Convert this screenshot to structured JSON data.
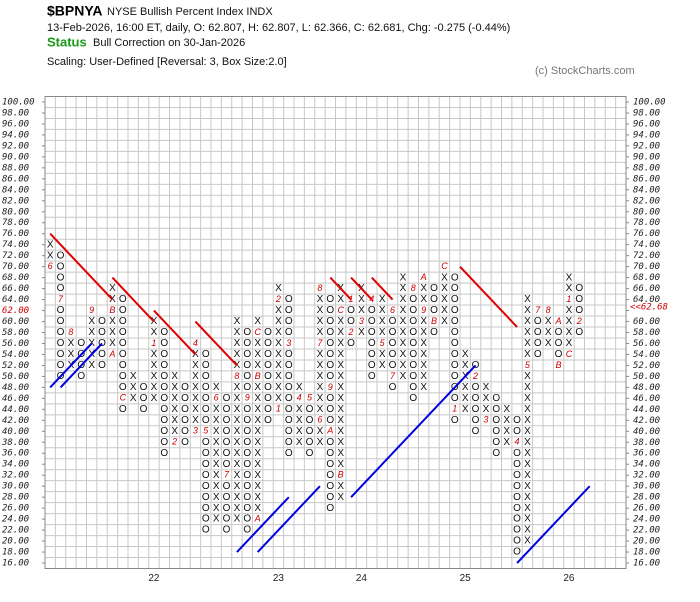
{
  "header": {
    "symbol": "$BPNYA",
    "name": "NYSE Bullish Percent Index  INDX",
    "quote": "13-Feb-2026, 16:00 ET, daily, O: 62.807, H: 62.807, L: 62.366, C: 62.681, Chg: -0.275 (-0.44%)",
    "status_label": "Status",
    "status": "Bull Correction on 30-Jan-2026",
    "scaling": "Scaling: User-Defined [Reversal: 3, Box Size:2.0]",
    "copyright": "(c) StockCharts.com"
  },
  "chart_data": {
    "type": "point_and_figure",
    "box_size": 2,
    "ylim": [
      15,
      101
    ],
    "xlim": [
      -0.5,
      55.5
    ],
    "grid": true,
    "yticks": [
      {
        "value": 16,
        "label": "16.00"
      },
      {
        "value": 18,
        "label": "18.00"
      },
      {
        "value": 20,
        "label": "20.00"
      },
      {
        "value": 22,
        "label": "22.00"
      },
      {
        "value": 24,
        "label": "24.00"
      },
      {
        "value": 26,
        "label": "26.00"
      },
      {
        "value": 28,
        "label": "28.00"
      },
      {
        "value": 30,
        "label": "30.00"
      },
      {
        "value": 32,
        "label": "32.00"
      },
      {
        "value": 34,
        "label": "34.00"
      },
      {
        "value": 36,
        "label": "36.00"
      },
      {
        "value": 38,
        "label": "38.00"
      },
      {
        "value": 40,
        "label": "40.00"
      },
      {
        "value": 42,
        "label": "42.00"
      },
      {
        "value": 44,
        "label": "44.00"
      },
      {
        "value": 46,
        "label": "46.00"
      },
      {
        "value": 48,
        "label": "48.00"
      },
      {
        "value": 50,
        "label": "50.00"
      },
      {
        "value": 52,
        "label": "52.00"
      },
      {
        "value": 54,
        "label": "54.00"
      },
      {
        "value": 56,
        "label": "56.00"
      },
      {
        "value": 58,
        "label": "58.00"
      },
      {
        "value": 60,
        "label": "60.00"
      },
      {
        "value": 62,
        "label": "62.00"
      },
      {
        "value": 64,
        "label": "64.00"
      },
      {
        "value": 66,
        "label": "66.00"
      },
      {
        "value": 68,
        "label": "68.00"
      },
      {
        "value": 70,
        "label": "70.00"
      },
      {
        "value": 72,
        "label": "72.00"
      },
      {
        "value": 74,
        "label": "74.00"
      },
      {
        "value": 76,
        "label": "76.00"
      },
      {
        "value": 78,
        "label": "78.00"
      },
      {
        "value": 80,
        "label": "80.00"
      },
      {
        "value": 82,
        "label": "82.00"
      },
      {
        "value": 84,
        "label": "84.00"
      },
      {
        "value": 86,
        "label": "86.00"
      },
      {
        "value": 88,
        "label": "88.00"
      },
      {
        "value": 90,
        "label": "90.00"
      },
      {
        "value": 92,
        "label": "92.00"
      },
      {
        "value": 94,
        "label": "94.00"
      },
      {
        "value": 96,
        "label": "96.00"
      },
      {
        "value": 98,
        "label": "98.00"
      },
      {
        "value": 100,
        "label": "100.00"
      }
    ],
    "current_box": 62,
    "current_color": "#d00000",
    "last_price": {
      "value": 62.68,
      "label": "<<62.68"
    },
    "year_labels": [
      {
        "column": 10,
        "label": "22"
      },
      {
        "column": 22,
        "label": "23"
      },
      {
        "column": 30,
        "label": "24"
      },
      {
        "column": 40,
        "label": "25"
      },
      {
        "column": 50,
        "label": "26"
      }
    ],
    "columns": [
      {
        "kind": "X",
        "low": 70,
        "high": 74,
        "markers": [
          {
            "at": 70,
            "label": "6"
          }
        ]
      },
      {
        "kind": "O",
        "low": 50,
        "high": 72,
        "markers": [
          {
            "at": 64,
            "label": "7"
          }
        ]
      },
      {
        "kind": "X",
        "low": 52,
        "high": 58,
        "markers": [
          {
            "at": 58,
            "label": "8"
          }
        ]
      },
      {
        "kind": "O",
        "low": 50,
        "high": 56,
        "markers": []
      },
      {
        "kind": "X",
        "low": 52,
        "high": 62,
        "markers": [
          {
            "at": 62,
            "label": "9"
          }
        ]
      },
      {
        "kind": "O",
        "low": 52,
        "high": 60,
        "markers": []
      },
      {
        "kind": "X",
        "low": 54,
        "high": 66,
        "markers": [
          {
            "at": 54,
            "label": "A"
          },
          {
            "at": 62,
            "label": "B"
          }
        ]
      },
      {
        "kind": "O",
        "low": 44,
        "high": 64,
        "markers": [
          {
            "at": 46,
            "label": "C"
          }
        ]
      },
      {
        "kind": "X",
        "low": 46,
        "high": 50,
        "markers": []
      },
      {
        "kind": "O",
        "low": 44,
        "high": 48,
        "markers": []
      },
      {
        "kind": "X",
        "low": 46,
        "high": 60,
        "markers": [
          {
            "at": 56,
            "label": "1"
          }
        ]
      },
      {
        "kind": "O",
        "low": 36,
        "high": 58,
        "markers": []
      },
      {
        "kind": "X",
        "low": 38,
        "high": 50,
        "markers": [
          {
            "at": 38,
            "label": "2"
          }
        ]
      },
      {
        "kind": "O",
        "low": 38,
        "high": 48,
        "markers": []
      },
      {
        "kind": "X",
        "low": 40,
        "high": 56,
        "markers": [
          {
            "at": 40,
            "label": "3"
          },
          {
            "at": 56,
            "label": "4"
          }
        ]
      },
      {
        "kind": "O",
        "low": 22,
        "high": 54,
        "markers": [
          {
            "at": 40,
            "label": "5"
          }
        ]
      },
      {
        "kind": "X",
        "low": 24,
        "high": 48,
        "markers": [
          {
            "at": 46,
            "label": "6"
          }
        ]
      },
      {
        "kind": "O",
        "low": 22,
        "high": 46,
        "markers": [
          {
            "at": 32,
            "label": "7"
          }
        ]
      },
      {
        "kind": "X",
        "low": 24,
        "high": 60,
        "markers": [
          {
            "at": 50,
            "label": "8"
          }
        ]
      },
      {
        "kind": "O",
        "low": 22,
        "high": 58,
        "markers": [
          {
            "at": 46,
            "label": "9"
          }
        ]
      },
      {
        "kind": "X",
        "low": 24,
        "high": 60,
        "markers": [
          {
            "at": 24,
            "label": "A"
          },
          {
            "at": 50,
            "label": "B"
          },
          {
            "at": 58,
            "label": "C"
          }
        ]
      },
      {
        "kind": "O",
        "low": 42,
        "high": 58,
        "markers": []
      },
      {
        "kind": "X",
        "low": 44,
        "high": 66,
        "markers": [
          {
            "at": 44,
            "label": "1"
          },
          {
            "at": 64,
            "label": "2"
          }
        ]
      },
      {
        "kind": "O",
        "low": 36,
        "high": 64,
        "markers": [
          {
            "at": 56,
            "label": "3"
          }
        ]
      },
      {
        "kind": "X",
        "low": 38,
        "high": 48,
        "markers": [
          {
            "at": 46,
            "label": "4"
          }
        ]
      },
      {
        "kind": "O",
        "low": 36,
        "high": 46,
        "markers": [
          {
            "at": 46,
            "label": "5"
          }
        ]
      },
      {
        "kind": "X",
        "low": 38,
        "high": 66,
        "markers": [
          {
            "at": 42,
            "label": "6"
          },
          {
            "at": 56,
            "label": "7"
          },
          {
            "at": 66,
            "label": "8"
          }
        ]
      },
      {
        "kind": "O",
        "low": 26,
        "high": 64,
        "markers": [
          {
            "at": 48,
            "label": "9"
          },
          {
            "at": 40,
            "label": "A"
          }
        ]
      },
      {
        "kind": "X",
        "low": 28,
        "high": 66,
        "markers": [
          {
            "at": 32,
            "label": "B"
          },
          {
            "at": 62,
            "label": "C"
          }
        ]
      },
      {
        "kind": "O",
        "low": 56,
        "high": 64,
        "markers": [
          {
            "at": 64,
            "label": "1"
          },
          {
            "at": 58,
            "label": "2"
          }
        ]
      },
      {
        "kind": "X",
        "low": 58,
        "high": 66,
        "markers": [
          {
            "at": 60,
            "label": "3"
          }
        ]
      },
      {
        "kind": "O",
        "low": 50,
        "high": 64,
        "markers": [
          {
            "at": 64,
            "label": "4"
          }
        ]
      },
      {
        "kind": "X",
        "low": 52,
        "high": 64,
        "markers": [
          {
            "at": 56,
            "label": "5"
          }
        ]
      },
      {
        "kind": "O",
        "low": 48,
        "high": 62,
        "markers": [
          {
            "at": 62,
            "label": "6"
          },
          {
            "at": 50,
            "label": "7"
          }
        ]
      },
      {
        "kind": "X",
        "low": 50,
        "high": 68,
        "markers": []
      },
      {
        "kind": "O",
        "low": 46,
        "high": 66,
        "markers": [
          {
            "at": 66,
            "label": "8"
          }
        ]
      },
      {
        "kind": "X",
        "low": 48,
        "high": 68,
        "markers": [
          {
            "at": 62,
            "label": "9"
          },
          {
            "at": 68,
            "label": "A"
          }
        ]
      },
      {
        "kind": "O",
        "low": 58,
        "high": 66,
        "markers": [
          {
            "at": 60,
            "label": "B"
          }
        ]
      },
      {
        "kind": "X",
        "low": 60,
        "high": 70,
        "markers": [
          {
            "at": 70,
            "label": "C"
          }
        ]
      },
      {
        "kind": "O",
        "low": 42,
        "high": 68,
        "markers": [
          {
            "at": 44,
            "label": "1"
          }
        ]
      },
      {
        "kind": "X",
        "low": 44,
        "high": 54,
        "markers": []
      },
      {
        "kind": "O",
        "low": 40,
        "high": 52,
        "markers": [
          {
            "at": 50,
            "label": "2"
          }
        ]
      },
      {
        "kind": "X",
        "low": 42,
        "high": 48,
        "markers": [
          {
            "at": 42,
            "label": "3"
          }
        ]
      },
      {
        "kind": "O",
        "low": 36,
        "high": 46,
        "markers": []
      },
      {
        "kind": "X",
        "low": 38,
        "high": 44,
        "markers": []
      },
      {
        "kind": "O",
        "low": 18,
        "high": 42,
        "markers": [
          {
            "at": 38,
            "label": "4"
          }
        ]
      },
      {
        "kind": "X",
        "low": 20,
        "high": 64,
        "markers": [
          {
            "at": 52,
            "label": "5"
          }
        ]
      },
      {
        "kind": "O",
        "low": 54,
        "high": 62,
        "markers": [
          {
            "at": 62,
            "label": "7"
          }
        ]
      },
      {
        "kind": "X",
        "low": 56,
        "high": 62,
        "markers": [
          {
            "at": 62,
            "label": "8"
          }
        ]
      },
      {
        "kind": "O",
        "low": 52,
        "high": 60,
        "markers": [
          {
            "at": 60,
            "label": "A"
          },
          {
            "at": 52,
            "label": "B"
          }
        ]
      },
      {
        "kind": "X",
        "low": 54,
        "high": 68,
        "markers": [
          {
            "at": 54,
            "label": "C"
          },
          {
            "at": 64,
            "label": "1"
          }
        ]
      },
      {
        "kind": "O",
        "low": 58,
        "high": 66,
        "markers": [
          {
            "at": 60,
            "label": "2"
          }
        ]
      }
    ],
    "trendlines": [
      {
        "color": "#e00000",
        "points": [
          [
            0,
            76
          ],
          [
            6,
            64
          ]
        ]
      },
      {
        "color": "#e00000",
        "points": [
          [
            6,
            68
          ],
          [
            10,
            60
          ]
        ]
      },
      {
        "color": "#e00000",
        "points": [
          [
            10,
            62
          ],
          [
            14,
            54
          ]
        ]
      },
      {
        "color": "#e00000",
        "points": [
          [
            14,
            60
          ],
          [
            18,
            52
          ]
        ]
      },
      {
        "color": "#e00000",
        "points": [
          [
            27,
            68
          ],
          [
            29,
            64
          ]
        ]
      },
      {
        "color": "#e00000",
        "points": [
          [
            29,
            68
          ],
          [
            31,
            64
          ]
        ]
      },
      {
        "color": "#e00000",
        "points": [
          [
            31,
            68
          ],
          [
            33,
            64
          ]
        ]
      },
      {
        "color": "#e00000",
        "points": [
          [
            39.5,
            70
          ],
          [
            45,
            59
          ]
        ]
      },
      {
        "color": "#0000e0",
        "points": [
          [
            0,
            48
          ],
          [
            4,
            56
          ]
        ]
      },
      {
        "color": "#0000e0",
        "points": [
          [
            1,
            48
          ],
          [
            5,
            56
          ]
        ]
      },
      {
        "color": "#0000e0",
        "points": [
          [
            18,
            18
          ],
          [
            23,
            28
          ]
        ]
      },
      {
        "color": "#0000e0",
        "points": [
          [
            20,
            18
          ],
          [
            26,
            30
          ]
        ]
      },
      {
        "color": "#0000e0",
        "points": [
          [
            29,
            28
          ],
          [
            41,
            52
          ]
        ]
      },
      {
        "color": "#0000e0",
        "points": [
          [
            45,
            16
          ],
          [
            52,
            30
          ]
        ]
      }
    ]
  }
}
